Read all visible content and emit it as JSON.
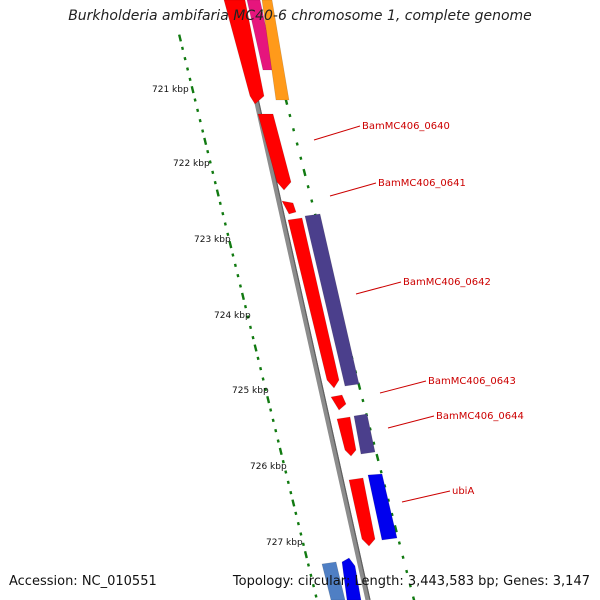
{
  "title": "Burkholderia ambifaria MC40-6 chromosome 1, complete genome",
  "footer": {
    "accession": "Accession: NC_010551",
    "summary": "Topology: circular; Length: 3,443,583 bp; Genes: 3,147"
  },
  "colors": {
    "backbone": "#8c8c8c",
    "tick": "#117a11",
    "forward_cds": "#ff0000",
    "reverse_cds": "#4b3f8c",
    "reverse_cds_alt": "#0000ee",
    "gene_label": "#cc0000"
  },
  "kbp_labels": [
    "721 kbp",
    "722 kbp",
    "723 kbp",
    "724 kbp",
    "725 kbp",
    "726 kbp",
    "727 kbp"
  ],
  "gene_labels": [
    "BamMC406_0640",
    "BamMC406_0641",
    "BamMC406_0642",
    "BamMC406_0643",
    "BamMC406_0644",
    "ubiA"
  ]
}
